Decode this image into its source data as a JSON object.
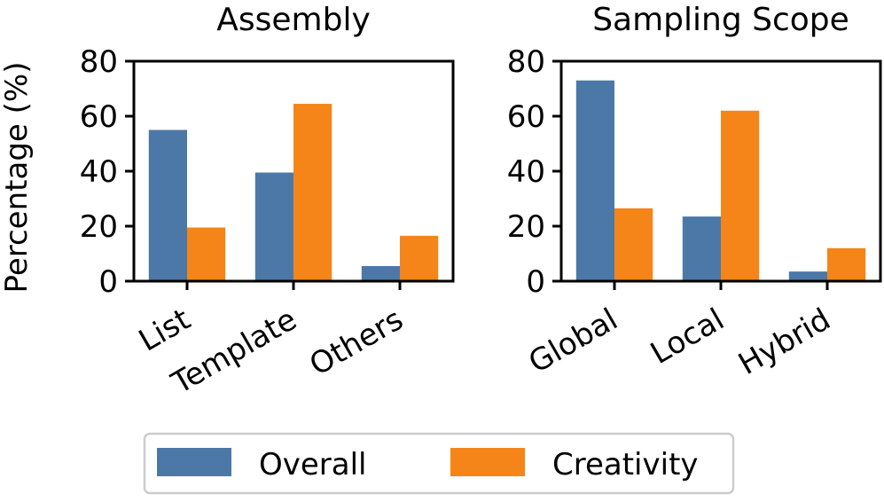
{
  "chart_data": [
    {
      "type": "bar",
      "title": "Assembly",
      "categories": [
        "List",
        "Template",
        "Others"
      ],
      "series": [
        {
          "name": "Overall",
          "values": [
            55,
            39.5,
            5.5
          ]
        },
        {
          "name": "Creativity",
          "values": [
            19.5,
            64.5,
            16.5
          ]
        }
      ],
      "ylabel": "Percentage (%)",
      "ylim": [
        0,
        80
      ],
      "yticks": [
        "0",
        "20",
        "40",
        "60",
        "80"
      ]
    },
    {
      "type": "bar",
      "title": "Sampling Scope",
      "categories": [
        "Global",
        "Local",
        "Hybrid"
      ],
      "series": [
        {
          "name": "Overall",
          "values": [
            73,
            23.5,
            3.5
          ]
        },
        {
          "name": "Creativity",
          "values": [
            26.5,
            62,
            12
          ]
        }
      ],
      "ylabel": "",
      "ylim": [
        0,
        80
      ],
      "yticks": [
        "0",
        "20",
        "40",
        "60",
        "80"
      ]
    }
  ],
  "legend": {
    "position": "bottom-center",
    "items": [
      {
        "label": "Overall",
        "color": "#4c78a8"
      },
      {
        "label": "Creativity",
        "color": "#f58518"
      }
    ]
  },
  "colors": {
    "overall": "#4c78a8",
    "creativity": "#f58518"
  }
}
